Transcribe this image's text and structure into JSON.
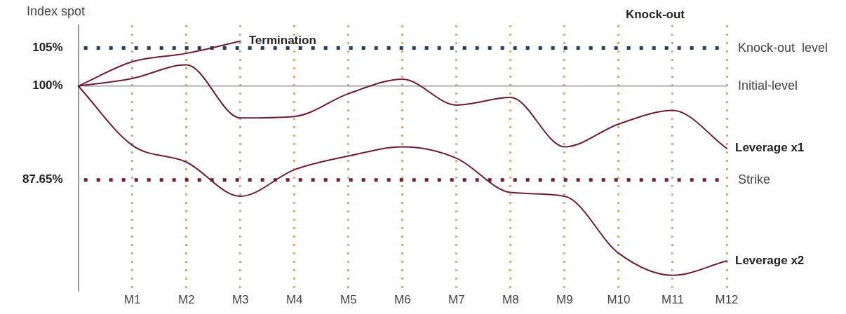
{
  "chart_data": {
    "type": "line",
    "ylabel": "Index spot",
    "categories": [
      null,
      "M1",
      "M2",
      "M3",
      "M4",
      "M5",
      "M6",
      "M7",
      "M8",
      "M9",
      "M10",
      "M11",
      "M12"
    ],
    "ylim": [
      73,
      108
    ],
    "yticks": [
      {
        "value": 87.65,
        "label": "87.65%"
      },
      {
        "value": 100,
        "label": "100%"
      },
      {
        "value": 105,
        "label": "105%"
      }
    ],
    "grid": "x",
    "legend": false,
    "marker": "none",
    "line_style": "solid",
    "series": [
      {
        "name": "Termination",
        "color": "#6b1d35",
        "values": [
          100,
          103.2,
          104.3,
          105.9,
          null,
          null,
          null,
          null,
          null,
          null,
          null,
          null,
          null
        ]
      },
      {
        "name": "Leverage x1",
        "color": "#6b1d35",
        "values": [
          100,
          101.0,
          102.8,
          95.8,
          96.0,
          99.0,
          100.9,
          97.5,
          98.5,
          92.0,
          95.0,
          96.8,
          91.8
        ]
      },
      {
        "name": "Leverage x2",
        "color": "#6b1d35",
        "values": [
          100,
          92.2,
          90.0,
          85.5,
          89.0,
          90.8,
          92.0,
          90.5,
          86.0,
          85.5,
          78.0,
          75.1,
          77.0
        ]
      }
    ],
    "ref_lines": [
      {
        "axis": "y",
        "value": 105,
        "label": "Knock-out  level",
        "color": "#1f3f63",
        "line_style": "dotted"
      },
      {
        "axis": "y",
        "value": 100,
        "label": "Initial-level",
        "color": "#9a9a9a",
        "line_style": "solid"
      },
      {
        "axis": "y",
        "value": 87.65,
        "label": "Strike",
        "color": "#6b1d3a",
        "line_style": "dotted"
      }
    ],
    "annotations": [
      "Knock-out"
    ]
  }
}
